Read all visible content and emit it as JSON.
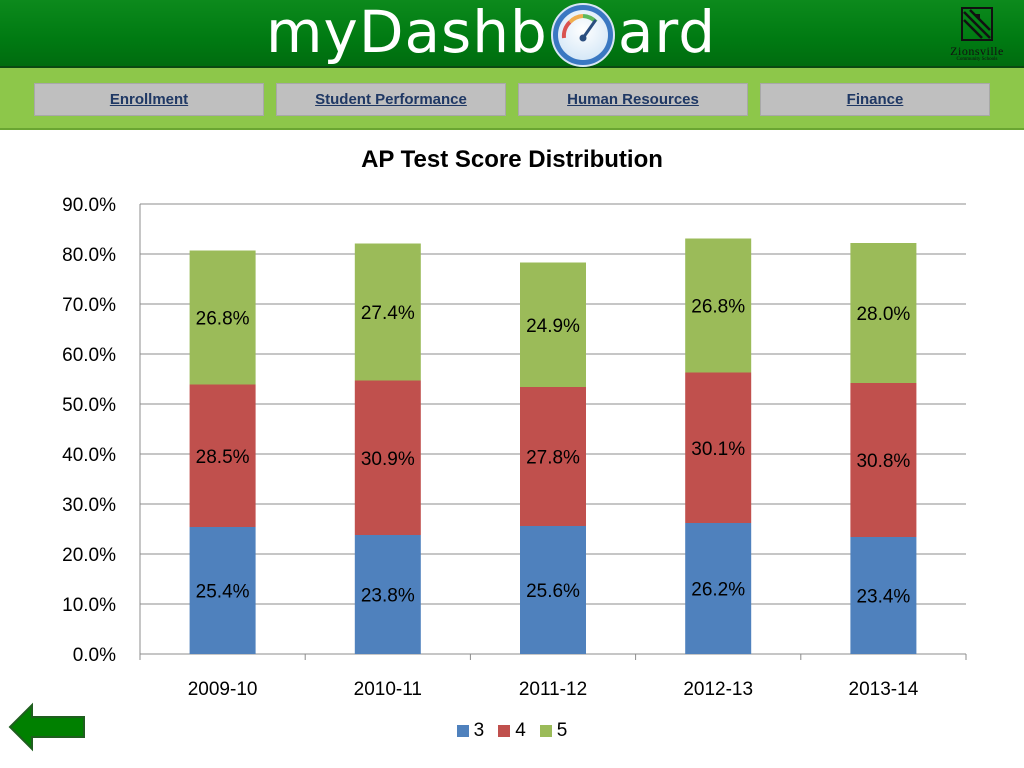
{
  "header": {
    "logo_prefix": "myDashb",
    "logo_suffix": "ard",
    "school_name": "Zionsville",
    "school_subtitle": "Community Schools"
  },
  "nav": {
    "items": [
      {
        "label": "Enrollment"
      },
      {
        "label": "Student Performance"
      },
      {
        "label": "Human Resources"
      },
      {
        "label": "Finance"
      }
    ]
  },
  "colors": {
    "header_green": "#007a12",
    "nav_green": "#8dc74a",
    "nav_button": "#bfbfbf",
    "nav_text": "#1f3864",
    "series_3": "#4f81bd",
    "series_4": "#c0504d",
    "series_5": "#9bbb59",
    "back_arrow": "#008000"
  },
  "icons": {
    "gauge": "gauge-icon",
    "back": "back-arrow-icon",
    "school_logo": "school-crest-icon"
  },
  "chart_data": {
    "type": "bar",
    "stacked": true,
    "title": "AP Test Score Distribution",
    "xlabel": "",
    "ylabel": "",
    "categories": [
      "2009-10",
      "2010-11",
      "2011-12",
      "2012-13",
      "2013-14"
    ],
    "series": [
      {
        "name": "3",
        "color": "#4f81bd",
        "values": [
          25.4,
          23.8,
          25.6,
          26.2,
          23.4
        ],
        "labels": [
          "25.4%",
          "23.8%",
          "25.6%",
          "26.2%",
          "23.4%"
        ]
      },
      {
        "name": "4",
        "color": "#c0504d",
        "values": [
          28.5,
          30.9,
          27.8,
          30.1,
          30.8
        ],
        "labels": [
          "28.5%",
          "30.9%",
          "27.8%",
          "30.1%",
          "30.8%"
        ]
      },
      {
        "name": "5",
        "color": "#9bbb59",
        "values": [
          26.8,
          27.4,
          24.9,
          26.8,
          28.0
        ],
        "labels": [
          "26.8%",
          "27.4%",
          "24.9%",
          "26.8%",
          "28.0%"
        ]
      }
    ],
    "ylim": [
      0,
      90
    ],
    "yticks": [
      "0.0%",
      "10.0%",
      "20.0%",
      "30.0%",
      "40.0%",
      "50.0%",
      "60.0%",
      "70.0%",
      "80.0%",
      "90.0%"
    ],
    "grid": true,
    "legend_position": "bottom"
  }
}
